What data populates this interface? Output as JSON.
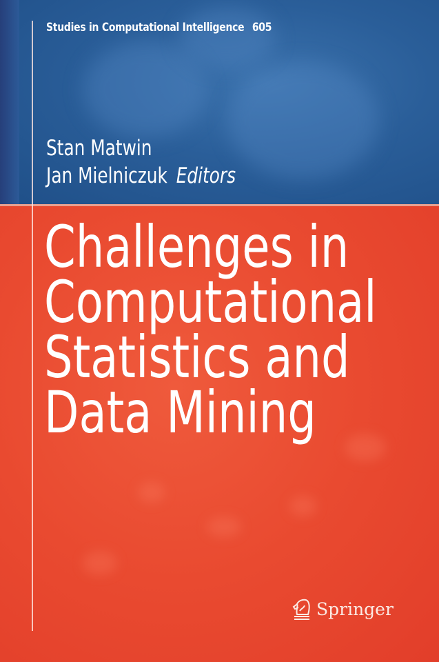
{
  "series": {
    "name": "Studies in Computational Intelligence",
    "number": "605"
  },
  "editors": [
    "Stan Matwin",
    "Jan Mielniczuk"
  ],
  "editors_label": "Editors",
  "title_lines": [
    "Challenges in",
    "Computational",
    "Statistics and",
    "Data Mining"
  ],
  "publisher": {
    "name": "Springer",
    "logo_icon": "knight-chess-piece-icon"
  },
  "colors": {
    "top_band": "#2a5e99",
    "bottom_band": "#e94a30",
    "text": "#ffffff"
  }
}
